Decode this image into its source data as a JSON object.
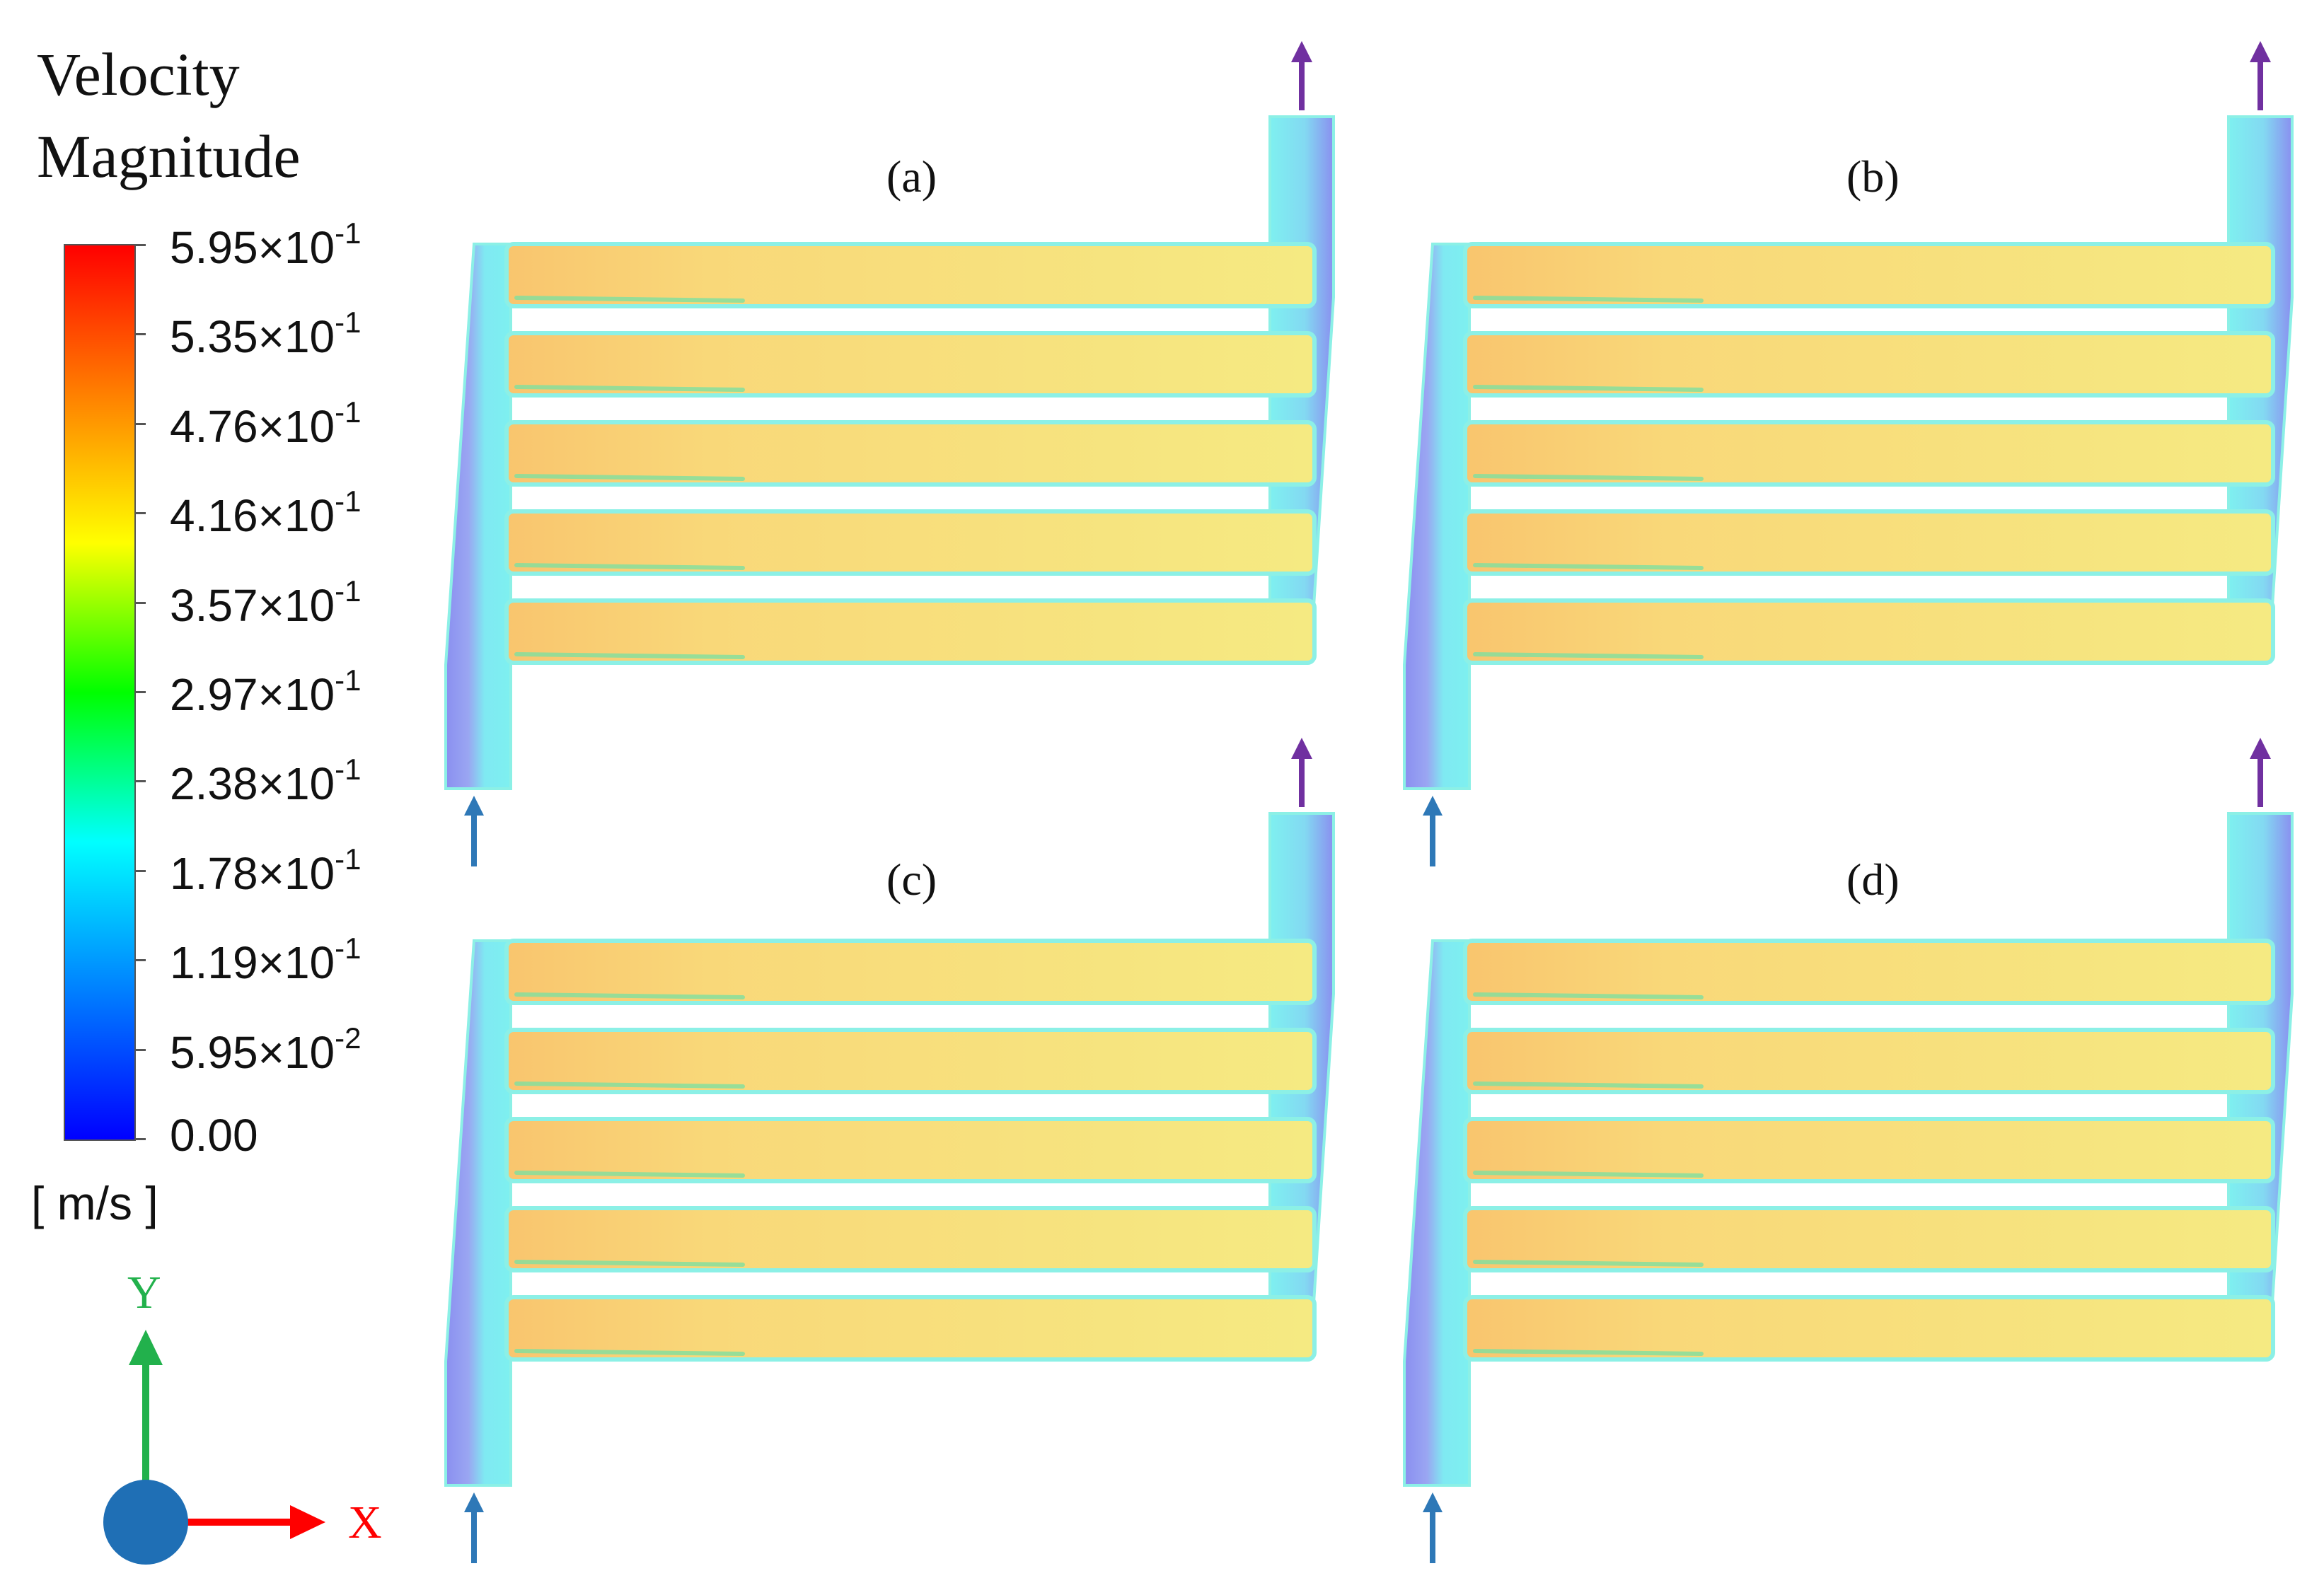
{
  "legend": {
    "title_line1": "Velocity",
    "title_line2": "Magnitude",
    "unit": "[ m/s ]",
    "ticks": [
      {
        "mant": "5.95",
        "exp": "-1"
      },
      {
        "mant": "5.35",
        "exp": "-1"
      },
      {
        "mant": "4.76",
        "exp": "-1"
      },
      {
        "mant": "4.16",
        "exp": "-1"
      },
      {
        "mant": "3.57",
        "exp": "-1"
      },
      {
        "mant": "2.97",
        "exp": "-1"
      },
      {
        "mant": "2.38",
        "exp": "-1"
      },
      {
        "mant": "1.78",
        "exp": "-1"
      },
      {
        "mant": "1.19",
        "exp": "-1"
      },
      {
        "mant": "5.95",
        "exp": "-2"
      },
      {
        "mant": "0.00",
        "exp": ""
      }
    ],
    "colormap": [
      "#ff0000",
      "#ff8000",
      "#ffff00",
      "#00ff00",
      "#00ffff",
      "#0080ff",
      "#0000ff"
    ]
  },
  "axes": {
    "y_label": "Y",
    "x_label": "X"
  },
  "panels": [
    {
      "label": "(a)"
    },
    {
      "label": "(b)"
    },
    {
      "label": "(c)"
    },
    {
      "label": "(d)"
    }
  ],
  "colors": {
    "channel_fill": "#f7e87e",
    "channel_edge": "#8cf0e6",
    "manifold_fill": "#7ef0f0",
    "manifold_shade": "#8a8ff0",
    "inlet_arrow": "#2e78b7",
    "outlet_arrow": "#7030a0",
    "axis_y": "#22b14c",
    "axis_x": "#ff0000",
    "origin_dot": "#1f6fb5"
  }
}
